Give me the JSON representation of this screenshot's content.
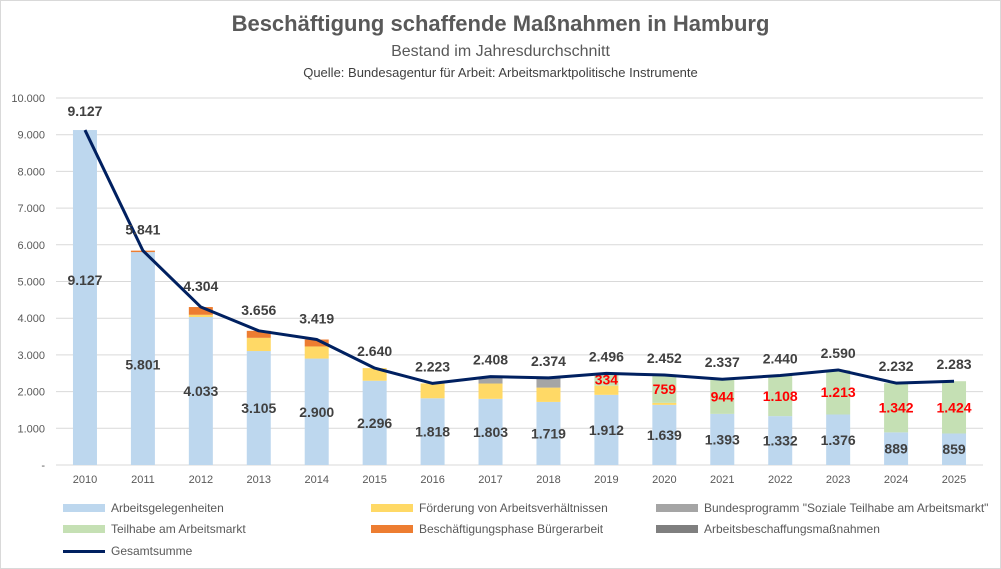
{
  "chart_data": {
    "type": "bar",
    "stacked": true,
    "title": "Beschäftigung schaffende Maßnahmen in Hamburg",
    "subtitle": "Bestand im Jahresdurchschnitt",
    "source": "Quelle: Bundesagentur für Arbeit: Arbeitsmarktpolitische Instrumente",
    "categories": [
      "2010",
      "2011",
      "2012",
      "2013",
      "2014",
      "2015",
      "2016",
      "2017",
      "2018",
      "2019",
      "2020",
      "2021",
      "2022",
      "2023",
      "2024",
      "2025"
    ],
    "ylim": [
      0,
      10000
    ],
    "yticks": [
      "-",
      "1.000",
      "2.000",
      "3.000",
      "4.000",
      "5.000",
      "6.000",
      "7.000",
      "8.000",
      "9.000",
      "10.000"
    ],
    "grid": true,
    "legend_position": "bottom",
    "series": [
      {
        "name": "Arbeitsgelegenheiten",
        "color": "#BDD7EE",
        "values": [
          9127,
          5801,
          4033,
          3105,
          2900,
          2296,
          1818,
          1803,
          1719,
          1912,
          1639,
          1393,
          1332,
          1376,
          889,
          859
        ],
        "labels": [
          "9.127",
          "5.801",
          "4.033",
          "3.105",
          "2.900",
          "2.296",
          "1.818",
          "1.803",
          "1.719",
          "1.912",
          "1.639",
          "1.393",
          "1.332",
          "1.376",
          "889",
          "859"
        ]
      },
      {
        "name": "Förderung von Arbeitsverhältnissen",
        "color": "#FFD966",
        "values": [
          0,
          0,
          60,
          360,
          330,
          344,
          405,
          417,
          390,
          250,
          54,
          0,
          0,
          0,
          0,
          0
        ]
      },
      {
        "name": "Bundesprogramm \"Soziale Teilhabe am Arbeitsmarkt\"",
        "color": "#A5A5A5",
        "values": [
          0,
          0,
          0,
          0,
          0,
          0,
          0,
          188,
          265,
          0,
          0,
          0,
          0,
          0,
          0,
          0
        ]
      },
      {
        "name": "Teilhabe am Arbeitsmarkt",
        "color": "#C5E0B4",
        "values": [
          0,
          0,
          0,
          0,
          0,
          0,
          0,
          0,
          0,
          334,
          759,
          944,
          1108,
          1213,
          1342,
          1424
        ],
        "labels": [
          "",
          "",
          "",
          "",
          "",
          "",
          "",
          "",
          "",
          "334",
          "759",
          "944",
          "1.108",
          "1.213",
          "1.342",
          "1.424"
        ],
        "label_color": "#FF0000"
      },
      {
        "name": "Beschäftigungsphase Bürgerarbeit",
        "color": "#ED7D31",
        "values": [
          0,
          40,
          211,
          191,
          189,
          0,
          0,
          0,
          0,
          0,
          0,
          0,
          0,
          0,
          0,
          0
        ]
      },
      {
        "name": "Arbeitsbeschaffungsmaßnahmen",
        "color": "#7F7F7F",
        "values": [
          0,
          0,
          0,
          0,
          0,
          0,
          0,
          0,
          0,
          0,
          0,
          0,
          0,
          0,
          0,
          0
        ]
      }
    ],
    "line": {
      "name": "Gesamtsumme",
      "color": "#002060",
      "values": [
        9127,
        5841,
        4304,
        3656,
        3419,
        2640,
        2223,
        2408,
        2374,
        2496,
        2452,
        2337,
        2440,
        2590,
        2232,
        2283
      ],
      "labels": [
        "9.127",
        "5.841",
        "4.304",
        "3.656",
        "3.419",
        "2.640",
        "2.223",
        "2.408",
        "2.374",
        "2.496",
        "2.452",
        "2.337",
        "2.440",
        "2.590",
        "2.232",
        "2.283"
      ]
    }
  }
}
